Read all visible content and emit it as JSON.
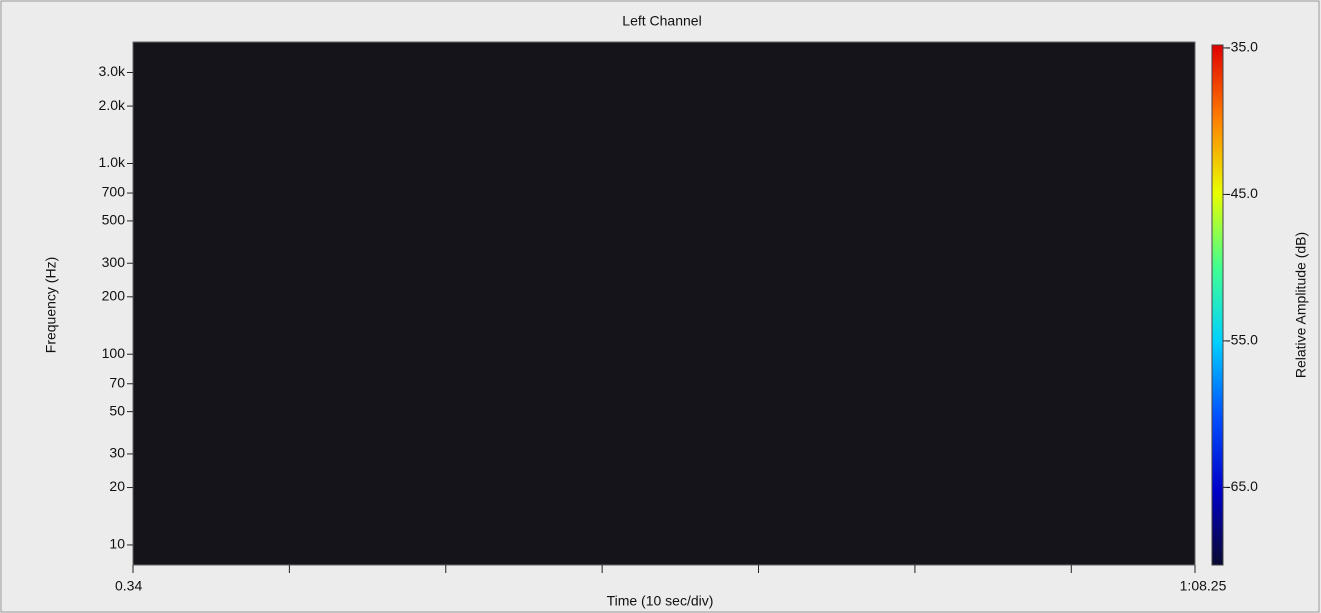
{
  "chart_data": {
    "type": "spectrogram",
    "title": "Left Channel",
    "x_label": "Time (10 sec/div)",
    "y_label": "Frequency (Hz)",
    "xlim": [
      0.34,
      68.25
    ],
    "xticks": [
      {
        "value": 0.34,
        "label": "0.34"
      },
      {
        "value": 68.25,
        "label": "1:08.25"
      }
    ],
    "xminorticks": [
      10.34,
      20.34,
      30.34,
      40.34,
      50.34,
      60.34
    ],
    "ylim": [
      7.85,
      4335
    ],
    "log_y": true,
    "yticks": [
      10,
      20,
      30,
      50,
      70,
      100,
      200,
      300,
      500,
      700,
      {
        "value": 1000,
        "label": "1.0k"
      },
      {
        "value": 2000,
        "label": "2.0k"
      },
      {
        "value": 3000,
        "label": "3.0k"
      }
    ],
    "colorbar": {
      "label": "Relative Amplitude (dB)",
      "lim": [
        -70.3,
        -34.8
      ],
      "ticks": [
        {
          "value": -35,
          "label": "-35.0"
        },
        {
          "value": -45,
          "label": "-45.0"
        },
        {
          "value": -55,
          "label": "-55.0"
        },
        {
          "value": -65,
          "label": "-65.0"
        }
      ],
      "colors": [
        "#0a0a30",
        "#0000c8",
        "#0050ff",
        "#00d0ff",
        "#40ff90",
        "#e8ff00",
        "#ff8000",
        "#e00000"
      ]
    },
    "background": "#14141a"
  }
}
